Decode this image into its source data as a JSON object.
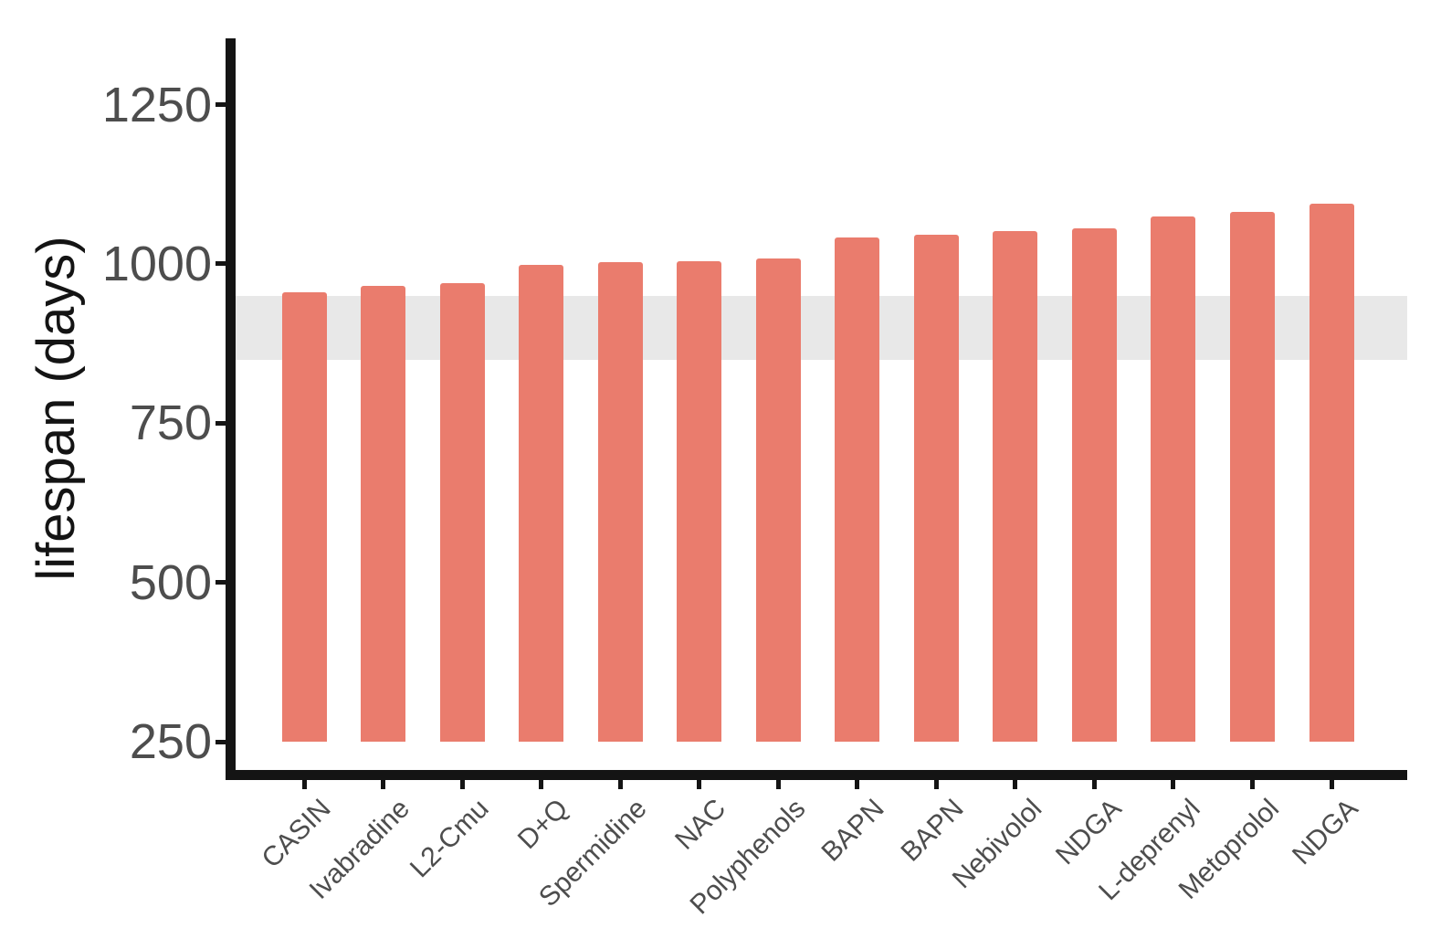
{
  "chart_data": {
    "type": "bar",
    "title": "",
    "xlabel": "",
    "ylabel": "lifespan (days)",
    "categories": [
      "CASIN",
      "Ivabradine",
      "L2-Cmu",
      "D+Q",
      "Spermidine",
      "NAC",
      "Polyphenols",
      "BAPN",
      "BAPN",
      "Nebivolol",
      "NDGA",
      "L-deprenyl",
      "Metoprolol",
      "NDGA"
    ],
    "values": [
      955,
      965,
      970,
      998,
      1002,
      1004,
      1009,
      1042,
      1046,
      1051,
      1056,
      1074,
      1082,
      1094
    ],
    "bar_baseline": 250,
    "y_ticks": [
      250,
      500,
      750,
      1000,
      1250
    ],
    "y_tick_labels": [
      "250",
      "500",
      "750",
      "1000",
      "1250"
    ],
    "ylim": [
      198,
      1354
    ],
    "grid": false,
    "legend": "none",
    "reference_band": {
      "from": 850,
      "to": 950
    },
    "colors": {
      "bar": "#ea7c6d",
      "reference_band": "#e8e8e8",
      "axis": "#141414",
      "tick_label": "#4d4d4d",
      "axis_title": "#141414"
    }
  }
}
